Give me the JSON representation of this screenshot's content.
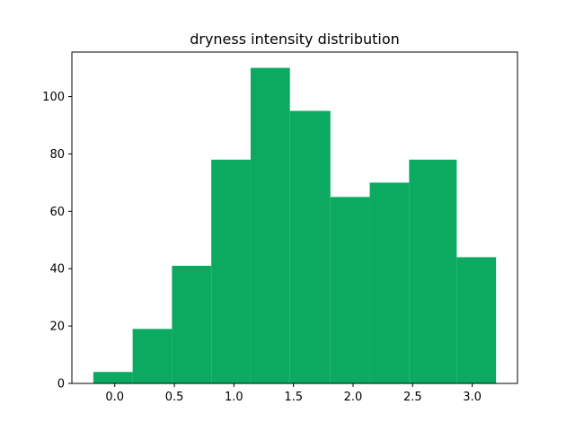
{
  "chart_data": {
    "type": "bar",
    "title": "dryness intensity distribution",
    "xlabel": "",
    "ylabel": "",
    "bar_color": "#0baa60",
    "bin_edges": [
      -0.18,
      0.15,
      0.48,
      0.81,
      1.14,
      1.47,
      1.81,
      2.14,
      2.47,
      2.87,
      3.2
    ],
    "values": [
      4,
      19,
      41,
      78,
      110,
      95,
      65,
      70,
      78,
      44
    ],
    "xlim": [
      -0.36,
      3.38
    ],
    "ylim": [
      0,
      115.5
    ],
    "x_ticks": [
      0.0,
      0.5,
      1.0,
      1.5,
      2.0,
      2.5,
      3.0
    ],
    "x_tick_labels": [
      "0.0",
      "0.5",
      "1.0",
      "1.5",
      "2.0",
      "2.5",
      "3.0"
    ],
    "y_ticks": [
      0,
      20,
      40,
      60,
      80,
      100
    ],
    "y_tick_labels": [
      "0",
      "20",
      "40",
      "60",
      "80",
      "100"
    ],
    "grid": false,
    "legend": "none"
  }
}
